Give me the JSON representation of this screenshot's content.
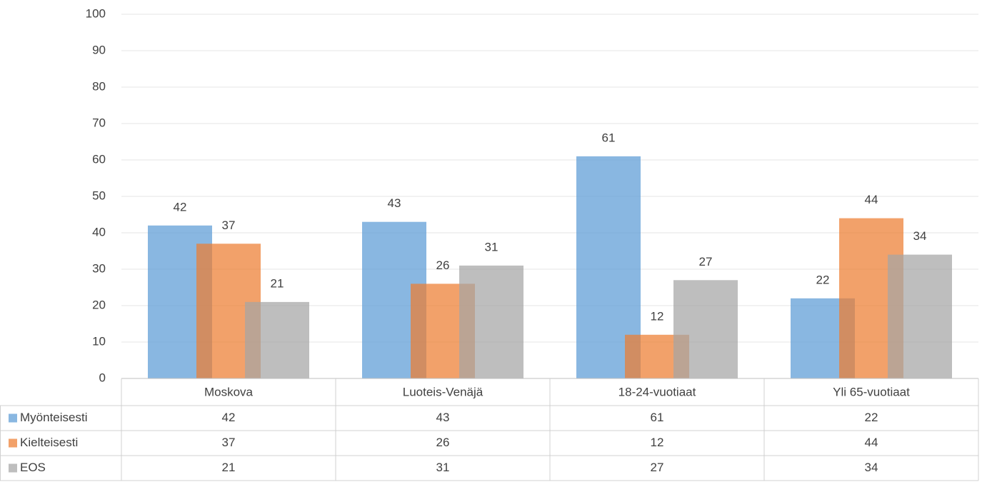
{
  "chart_data": {
    "type": "bar",
    "categories": [
      "Moskova",
      "Luoteis-Venäjä",
      "18-24-vuotiaat",
      "Yli 65-vuotiaat"
    ],
    "series": [
      {
        "name": "Myönteisesti",
        "color": "#5b9bd5",
        "values": [
          42,
          43,
          61,
          22
        ]
      },
      {
        "name": "Kielteisesti",
        "color": "#ed7d31",
        "values": [
          37,
          26,
          12,
          44
        ]
      },
      {
        "name": "EOS",
        "color": "#a5a5a5",
        "values": [
          21,
          31,
          27,
          34
        ]
      }
    ],
    "ylim": [
      0,
      100
    ],
    "yticks": [
      0,
      10,
      20,
      30,
      40,
      50,
      60,
      70,
      80,
      90,
      100
    ],
    "grid": true,
    "legend": "table"
  }
}
